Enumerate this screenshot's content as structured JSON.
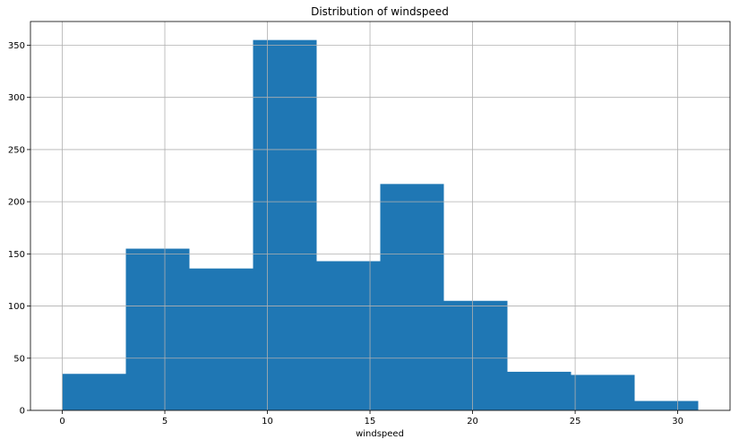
{
  "chart_data": {
    "type": "bar",
    "title": "Distribution of windspeed",
    "xlabel": "windspeed",
    "ylabel": "",
    "bins": [
      {
        "x0": 0.0,
        "x1": 3.1,
        "count": 35
      },
      {
        "x0": 3.1,
        "x1": 6.2,
        "count": 155
      },
      {
        "x0": 6.2,
        "x1": 9.3,
        "count": 136
      },
      {
        "x0": 9.3,
        "x1": 12.4,
        "count": 355
      },
      {
        "x0": 12.4,
        "x1": 15.5,
        "count": 143
      },
      {
        "x0": 15.5,
        "x1": 18.6,
        "count": 217
      },
      {
        "x0": 18.6,
        "x1": 21.7,
        "count": 105
      },
      {
        "x0": 21.7,
        "x1": 24.8,
        "count": 37
      },
      {
        "x0": 24.8,
        "x1": 27.9,
        "count": 34
      },
      {
        "x0": 27.9,
        "x1": 31.0,
        "count": 9
      }
    ],
    "xlim": [
      -1.55,
      32.55
    ],
    "ylim": [
      0,
      372.75
    ],
    "xticks": [
      0,
      5,
      10,
      15,
      20,
      25,
      30
    ],
    "yticks": [
      0,
      50,
      100,
      150,
      200,
      250,
      300,
      350
    ],
    "grid": true,
    "bar_color": "#1f77b4",
    "grid_color": "#b0b0b0"
  }
}
